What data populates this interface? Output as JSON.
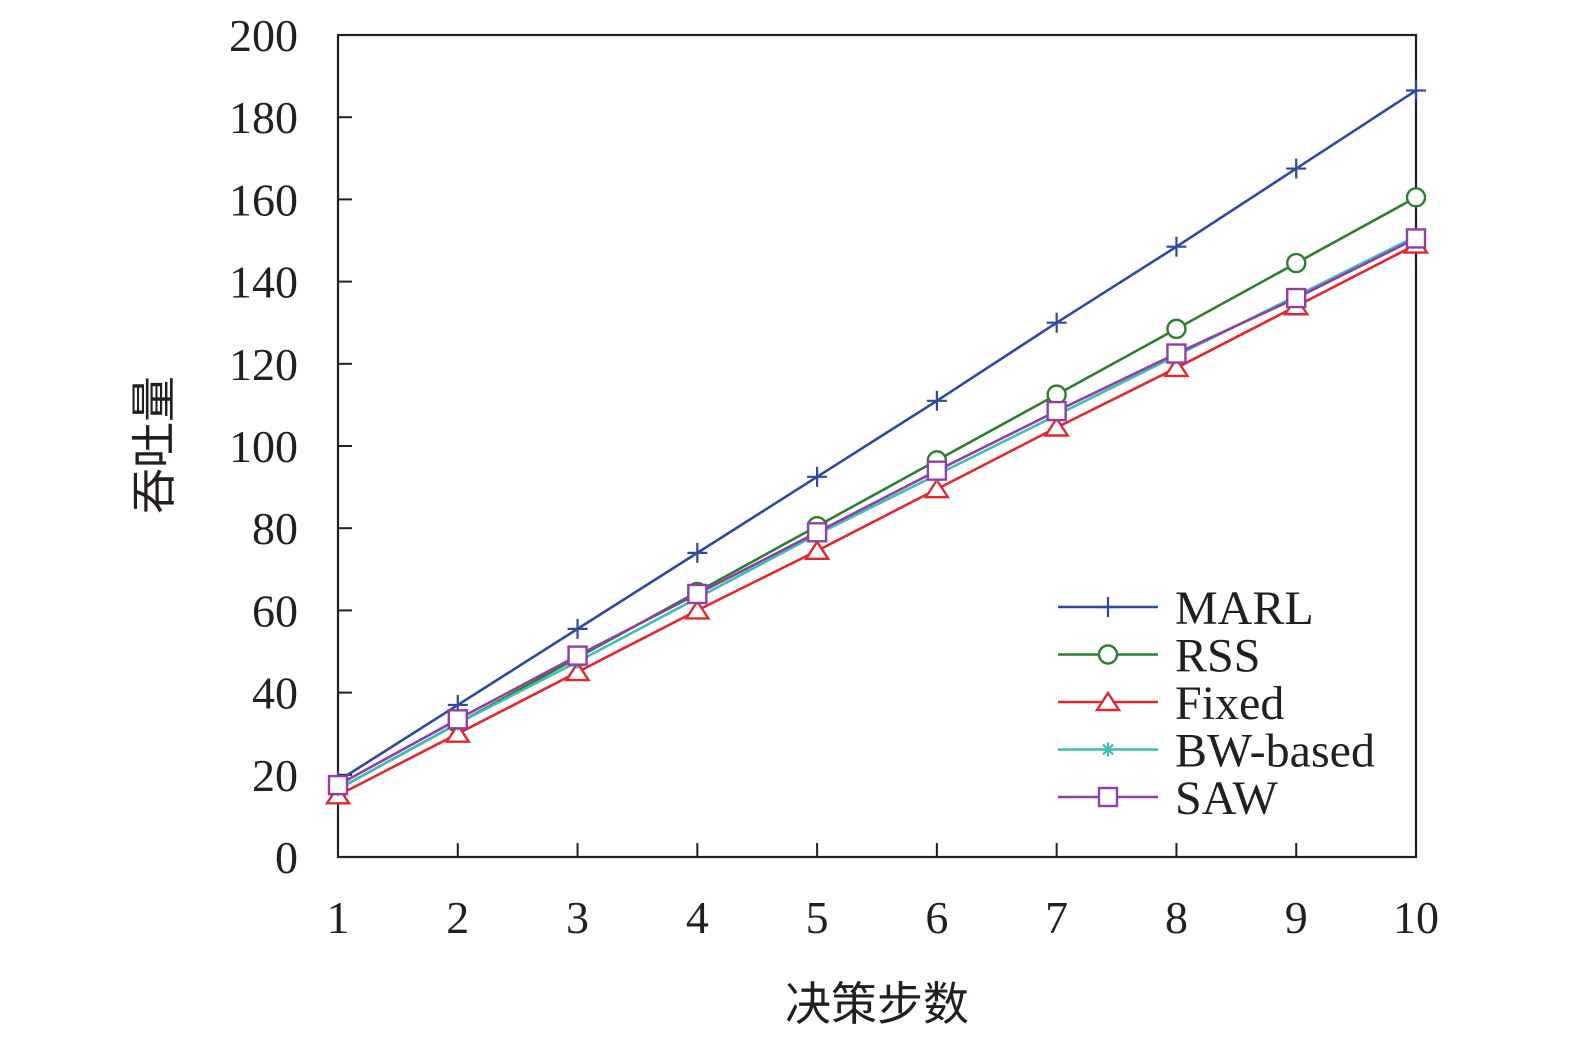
{
  "chart_data": {
    "type": "line",
    "xlabel": "决策步数",
    "ylabel": "吞吐量",
    "xlim": [
      1,
      10
    ],
    "ylim": [
      0,
      200
    ],
    "x": [
      1,
      2,
      3,
      4,
      5,
      6,
      7,
      8,
      9,
      10
    ],
    "x_ticks": [
      "1",
      "2",
      "3",
      "4",
      "5",
      "6",
      "7",
      "8",
      "9",
      "10"
    ],
    "y_ticks": [
      "0",
      "20",
      "40",
      "60",
      "80",
      "100",
      "120",
      "140",
      "160",
      "180",
      "200"
    ],
    "grid": false,
    "legend_position": "bottom-right",
    "series": [
      {
        "name": "MARL",
        "color": "#2e4a9e",
        "marker": "plus",
        "values": [
          18.5,
          37,
          55.5,
          74,
          92.5,
          111,
          130,
          148.5,
          167.5,
          186.5
        ]
      },
      {
        "name": "RSS",
        "color": "#2f7d32",
        "marker": "circle",
        "values": [
          16.5,
          32.5,
          48.5,
          64.5,
          80.5,
          96.5,
          112.5,
          128.5,
          144.5,
          160.5
        ]
      },
      {
        "name": "Fixed",
        "color": "#e0282e",
        "marker": "triangle",
        "values": [
          15,
          30,
          45,
          60,
          74.5,
          89.5,
          104.5,
          119,
          134,
          149
        ]
      },
      {
        "name": "BW-based",
        "color": "#3fbfb0",
        "marker": "asterisk",
        "values": [
          16.5,
          32.5,
          47.5,
          63,
          78.5,
          93,
          107.5,
          122,
          136.5,
          151
        ]
      },
      {
        "name": "SAW",
        "color": "#8e3fa8",
        "marker": "square",
        "values": [
          17.5,
          33.5,
          49,
          64,
          79,
          94,
          108.5,
          122.5,
          136,
          150.5
        ]
      }
    ]
  }
}
